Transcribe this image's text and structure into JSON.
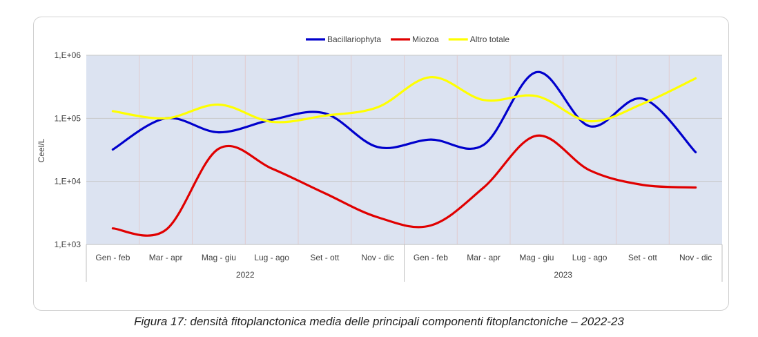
{
  "caption": "Figura 17: densità fitoplanctonica media delle principali componenti fitoplanctoniche – 2022-23",
  "chart_data": {
    "type": "line",
    "ylabel": "Ceel/L",
    "yscale": "log",
    "ylim": [
      1000,
      1000000
    ],
    "yticks": [
      1000,
      10000,
      100000,
      1000000
    ],
    "ytick_labels": [
      "1,E+03",
      "1,E+04",
      "1,E+05",
      "1,E+06"
    ],
    "categories": [
      "Gen - feb",
      "Mar - apr",
      "Mag - giu",
      "Lug - ago",
      "Set - ott",
      "Nov - dic",
      "Gen - feb",
      "Mar - apr",
      "Mag - giu",
      "Lug - ago",
      "Set - ott",
      "Nov - dic"
    ],
    "groups": [
      {
        "label": "2022",
        "start": 0,
        "end": 5
      },
      {
        "label": "2023",
        "start": 6,
        "end": 11
      }
    ],
    "legend_position": "top",
    "grid": true,
    "plot_background": "#dce3f1",
    "series": [
      {
        "name": "Bacillariophyta",
        "color": "#0000cc",
        "values": [
          32000,
          100000,
          60000,
          95000,
          120000,
          35000,
          46000,
          38000,
          540000,
          75000,
          205000,
          29000
        ]
      },
      {
        "name": "Miozoa",
        "color": "#e00000",
        "values": [
          1800,
          1700,
          33000,
          16000,
          6500,
          2700,
          2000,
          8000,
          53000,
          15000,
          8800,
          8000
        ]
      },
      {
        "name": "Altro totale",
        "color": "#ffff00",
        "values": [
          130000,
          100000,
          165000,
          88000,
          110000,
          150000,
          450000,
          195000,
          225000,
          90000,
          170000,
          430000
        ]
      }
    ]
  }
}
